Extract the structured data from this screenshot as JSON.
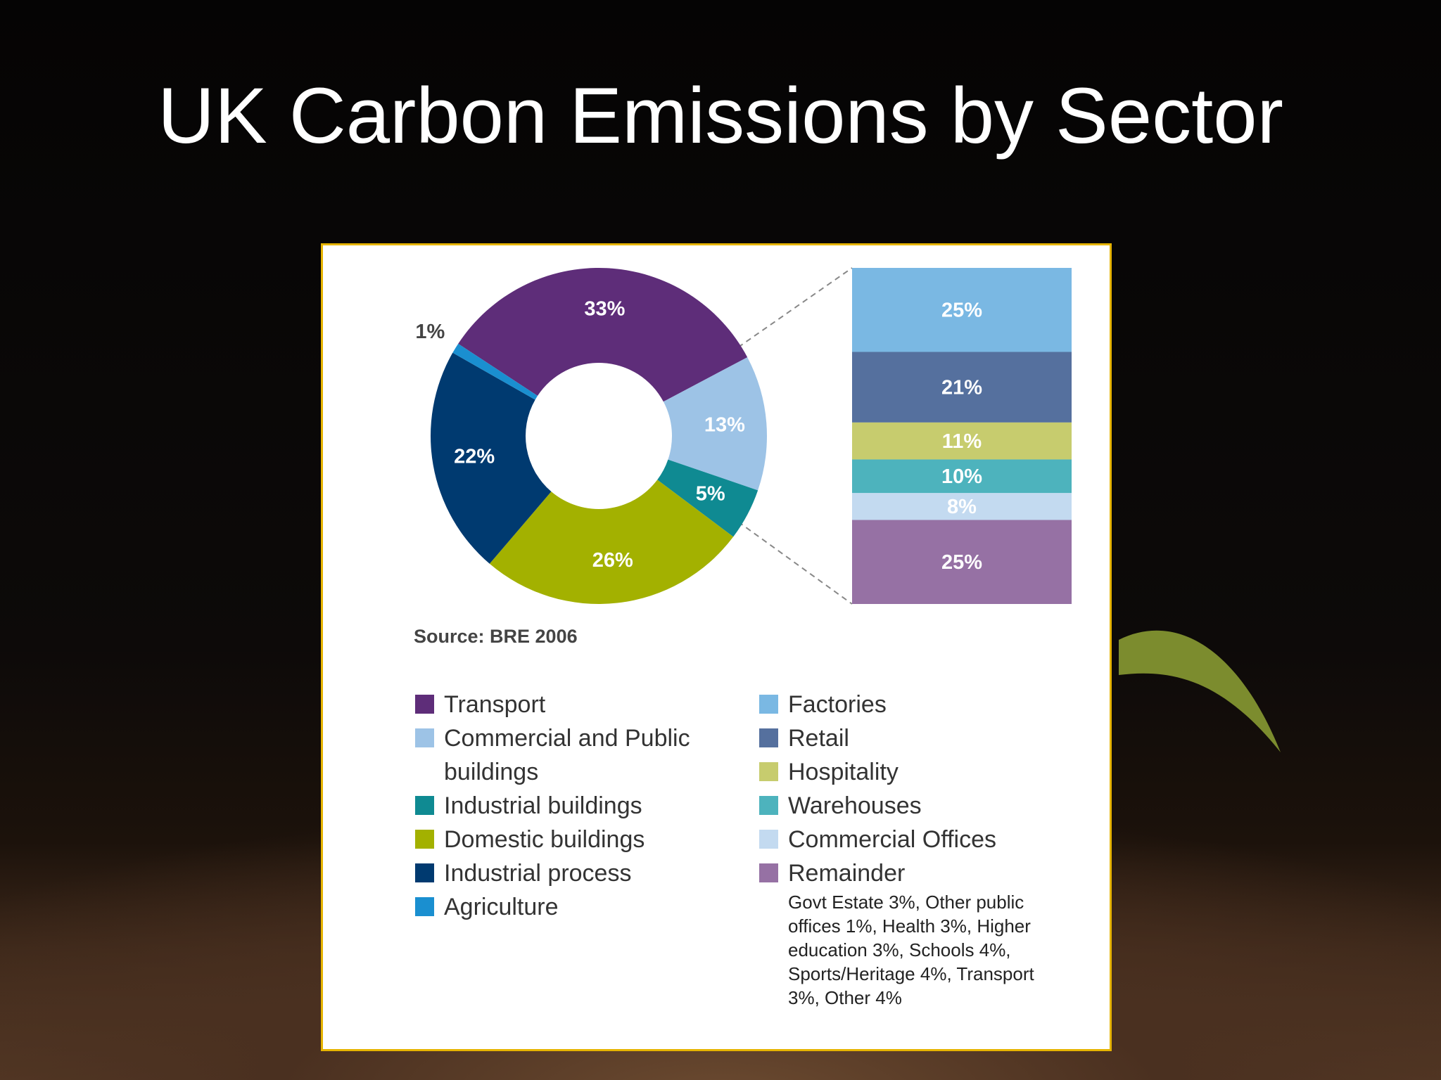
{
  "title": "UK Carbon Emissions by Sector",
  "chart_data": [
    {
      "type": "pie",
      "donut": true,
      "source": "Source: BRE 2006",
      "categories": [
        "Transport",
        "Commercial and Public buildings",
        "Industrial buildings",
        "Domestic buildings",
        "Industrial process",
        "Agriculture"
      ],
      "values": [
        33,
        13,
        5,
        26,
        22,
        1
      ],
      "value_labels": [
        "33%",
        "13%",
        "5%",
        "26%",
        "22%",
        "1%"
      ],
      "colors": [
        "#5e2d79",
        "#9dc3e6",
        "#0f8a92",
        "#a3b100",
        "#003a70",
        "#1a8fd0"
      ]
    },
    {
      "type": "bar",
      "stacked": true,
      "categories": [
        null
      ],
      "series": [
        {
          "name": "Factories",
          "color": "#7ab8e3",
          "values": [
            25
          ],
          "value_labels": [
            "25%"
          ]
        },
        {
          "name": "Retail",
          "color": "#55709e",
          "values": [
            21
          ],
          "value_labels": [
            "21%"
          ]
        },
        {
          "name": "Hospitality",
          "color": "#c7cc6e",
          "values": [
            11
          ],
          "value_labels": [
            "11%"
          ]
        },
        {
          "name": "Warehouses",
          "color": "#4db3bd",
          "values": [
            10
          ],
          "value_labels": [
            "10%"
          ]
        },
        {
          "name": "Commercial Offices",
          "color": "#c3daf0",
          "values": [
            8
          ],
          "value_labels": [
            "8%"
          ]
        },
        {
          "name": "Remainder",
          "color": "#9671a4",
          "values": [
            25
          ],
          "value_labels": [
            "25%"
          ]
        }
      ],
      "note": "Govt Estate 3%, Other public offices 1%, Health 3%, Higher education 3%, Schools 4%, Sports/Heritage 4%, Transport 3%, Other 4%"
    }
  ]
}
